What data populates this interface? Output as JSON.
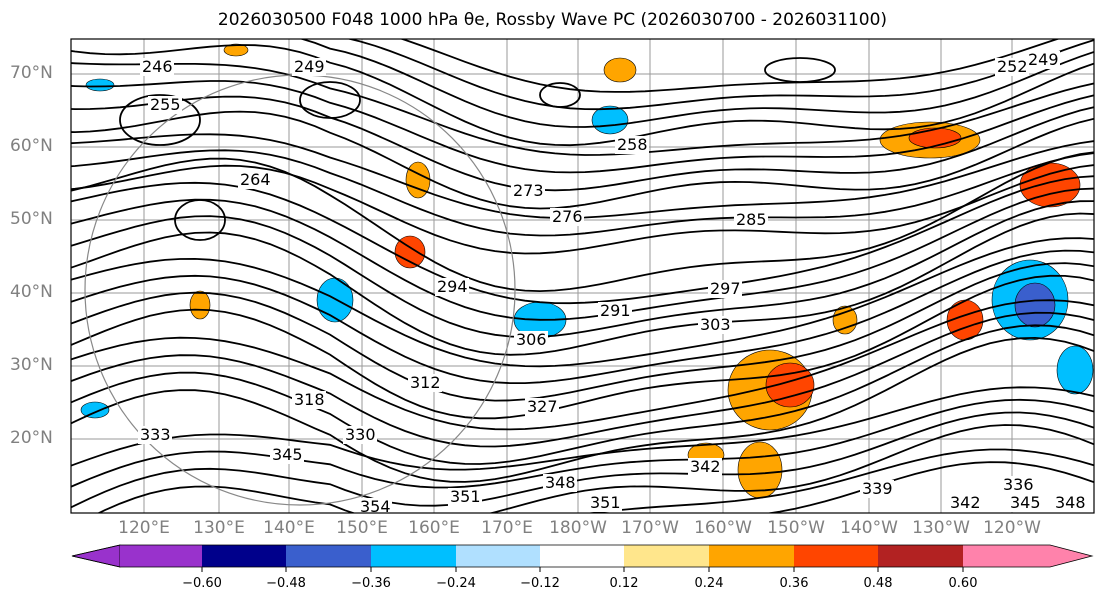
{
  "title": "2026030500 F048 1000 hPa θe, Rossby Wave PC (2026030700 - 2026031100)",
  "lat_labels": [
    "70°N",
    "60°N",
    "50°N",
    "40°N",
    "30°N",
    "20°N"
  ],
  "lon_labels": [
    "120°E",
    "130°E",
    "140°E",
    "150°E",
    "160°E",
    "170°E",
    "180°W",
    "170°W",
    "160°W",
    "150°W",
    "140°W",
    "130°W",
    "120°W"
  ],
  "contour_labels": [
    "249",
    "252",
    "249",
    "246",
    "255",
    "258",
    "264",
    "273",
    "276",
    "285",
    "294",
    "291",
    "297",
    "303",
    "306",
    "312",
    "318",
    "327",
    "330",
    "333",
    "345",
    "342",
    "339",
    "336",
    "342",
    "345",
    "348",
    "351",
    "354",
    "351",
    "348"
  ],
  "colorbar": {
    "ticks": [
      "−0.60",
      "−0.48",
      "−0.36",
      "−0.24",
      "−0.12",
      "0.12",
      "0.24",
      "0.36",
      "0.48",
      "0.60"
    ],
    "colors": [
      "#9932cc",
      "#00008b",
      "#3a5fcd",
      "#00bfff",
      "#b0e0ff",
      "#ffffff",
      "#ffe68c",
      "#ffa500",
      "#ff4500",
      "#b22222",
      "#ff82ab"
    ]
  },
  "shading_colors": {
    "neg_strong": "#3a5fcd",
    "neg": "#00bfff",
    "pos": "#ffa500",
    "pos_strong": "#ff4500",
    "pos_mid": "#ffe68c"
  }
}
